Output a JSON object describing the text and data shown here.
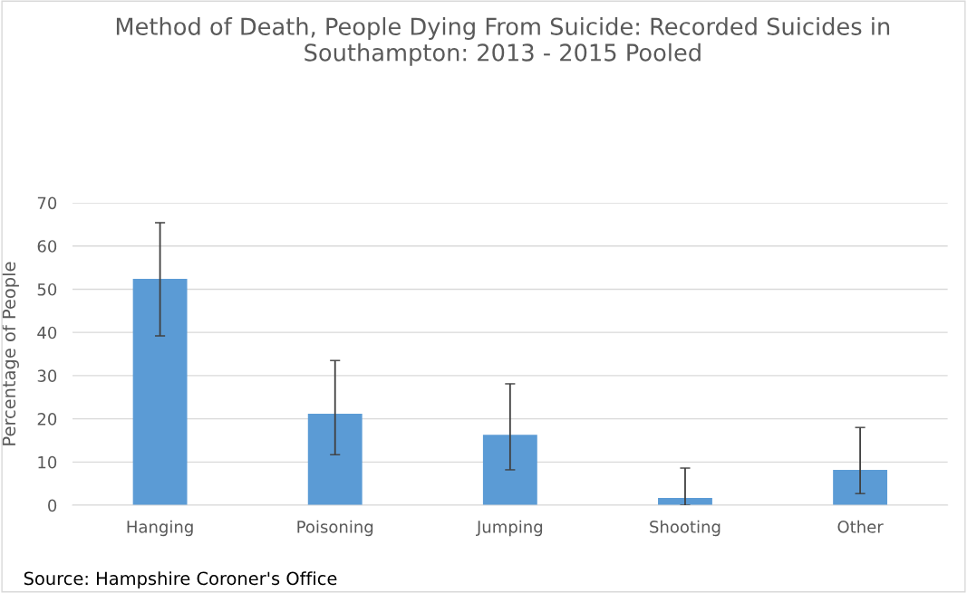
{
  "chart_data": {
    "type": "bar",
    "title": "Method of Death, People Dying From Suicide: Recorded Suicides in Southampton: 2013 - 2015 Pooled",
    "ylabel": "Percentage of People",
    "categories": [
      "Hanging",
      "Poisoning",
      "Jumping",
      "Shooting",
      "Other"
    ],
    "values": [
      52.4,
      21.2,
      16.3,
      1.7,
      8.2
    ],
    "errors": [
      [
        39.2,
        65.4
      ],
      [
        11.7,
        33.5
      ],
      [
        8.2,
        28.1
      ],
      [
        0,
        8.6
      ],
      [
        2.7,
        18.0
      ]
    ],
    "color": "#5b9bd5",
    "ylim": [
      0,
      70
    ],
    "yticks": [
      0,
      10,
      20,
      30,
      40,
      50,
      60,
      70
    ],
    "grid": "y",
    "annotations": [
      "Source: Hampshire Coroner's Office"
    ]
  }
}
